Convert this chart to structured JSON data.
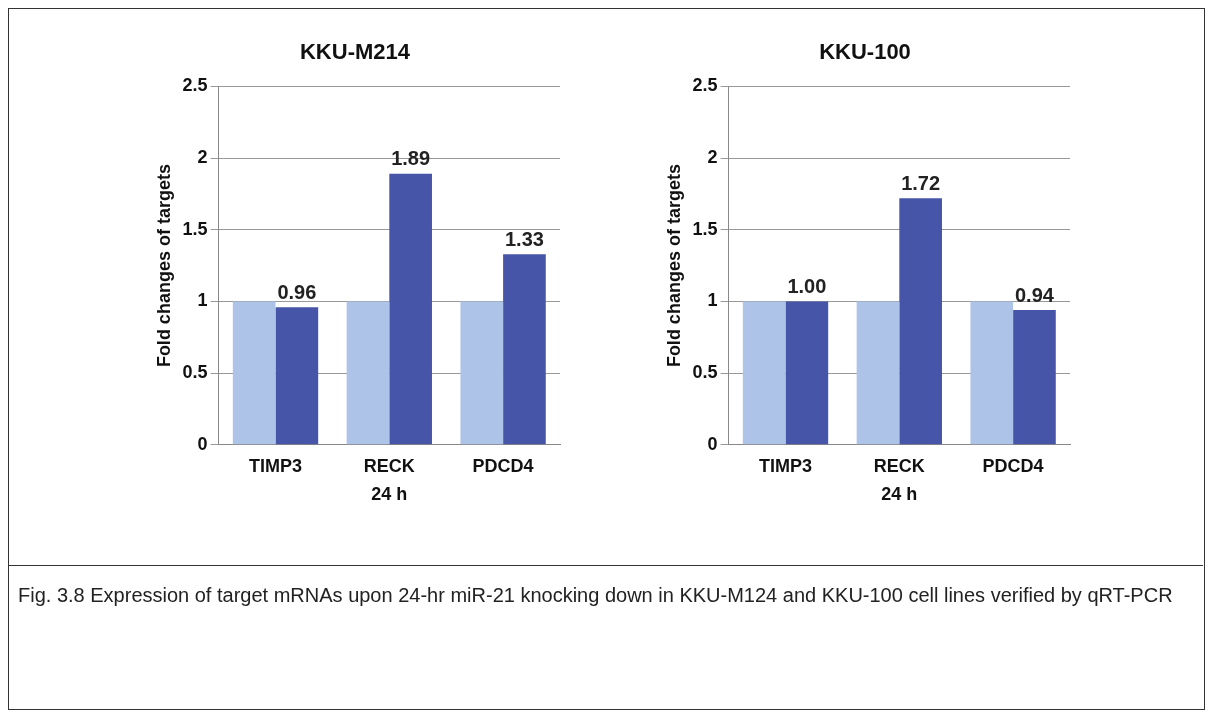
{
  "chart_data": [
    {
      "type": "bar",
      "title": "KKU-M214",
      "xlabel": "24 h",
      "ylabel": "Fold changes of targets",
      "categories": [
        "TIMP3",
        "RECK",
        "PDCD4"
      ],
      "series": [
        {
          "color": "#adc3e8",
          "values": [
            1,
            1,
            1
          ]
        },
        {
          "color": "#4655a8",
          "values": [
            0.96,
            1.89,
            1.33
          ],
          "value_labels": [
            "0.96",
            "1.89",
            "1.33"
          ]
        }
      ],
      "ylim": [
        0,
        2.5
      ],
      "yticks": [
        0,
        0.5,
        1,
        1.5,
        2,
        2.5
      ],
      "grid": "y",
      "legend": false,
      "annotations": [
        "Fig. 3.8  Expression of target mRNAs upon 24-hr miR-21 knocking down in KKU-M124 and KKU-100 cell lines verified by qRT-PCR"
      ]
    },
    {
      "type": "bar",
      "title": "KKU-100",
      "xlabel": "24 h",
      "ylabel": "Fold changes of targets",
      "categories": [
        "TIMP3",
        "RECK",
        "PDCD4"
      ],
      "series": [
        {
          "color": "#adc3e8",
          "values": [
            1,
            1,
            1
          ]
        },
        {
          "color": "#4655a8",
          "values": [
            1.0,
            1.72,
            0.94
          ],
          "value_labels": [
            "1.00",
            "1.72",
            "0.94"
          ]
        }
      ],
      "ylim": [
        0,
        2.5
      ],
      "yticks": [
        0,
        0.5,
        1,
        1.5,
        2,
        2.5
      ],
      "grid": "y",
      "legend": false
    }
  ]
}
